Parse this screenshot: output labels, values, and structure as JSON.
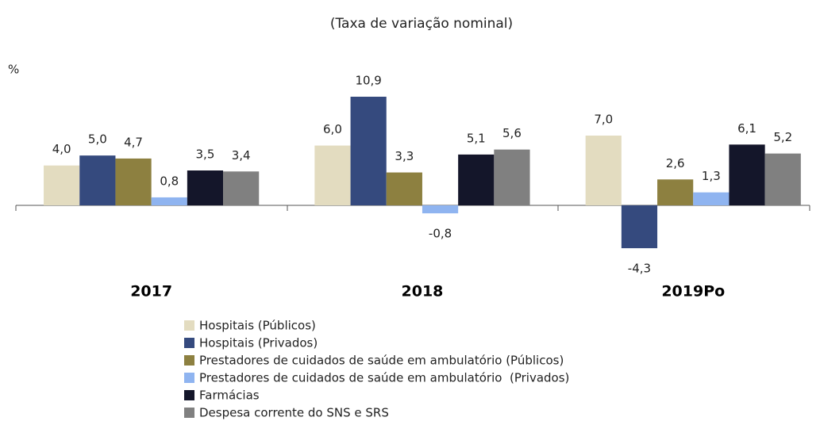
{
  "chart_data": {
    "type": "bar",
    "title": "(Taxa de variação nominal)",
    "y_label": "%",
    "categories": [
      "2017",
      "2018",
      "2019Po"
    ],
    "series": [
      {
        "name": "Hospitais (Públicos)",
        "color": "#e3dcc0",
        "values": [
          4.0,
          6.0,
          7.0
        ],
        "value_labels": [
          "4,0",
          "6,0",
          "7,0"
        ]
      },
      {
        "name": "Hospitais (Privados)",
        "color": "#354a7e",
        "values": [
          5.0,
          10.9,
          -4.3
        ],
        "value_labels": [
          "5,0",
          "10,9",
          "-4,3"
        ]
      },
      {
        "name": "Prestadores de cuidados de saúde em ambulatório (Públicos)",
        "color": "#8d8040",
        "values": [
          4.7,
          3.3,
          2.6
        ],
        "value_labels": [
          "4,7",
          "3,3",
          "2,6"
        ]
      },
      {
        "name": "Prestadores de cuidados de saúde em ambulatório  (Privados)",
        "color": "#8fb4f0",
        "values": [
          0.8,
          -0.8,
          1.3
        ],
        "value_labels": [
          "0,8",
          "-0,8",
          "1,3"
        ]
      },
      {
        "name": "Farmácias",
        "color": "#14162a",
        "values": [
          3.5,
          5.1,
          6.1
        ],
        "value_labels": [
          "3,5",
          "5,1",
          "6,1"
        ]
      },
      {
        "name": "Despesa corrente do SNS e SRS",
        "color": "#808080",
        "values": [
          3.4,
          5.6,
          5.2
        ],
        "value_labels": [
          "3,4",
          "5,6",
          "5,2"
        ]
      }
    ]
  }
}
